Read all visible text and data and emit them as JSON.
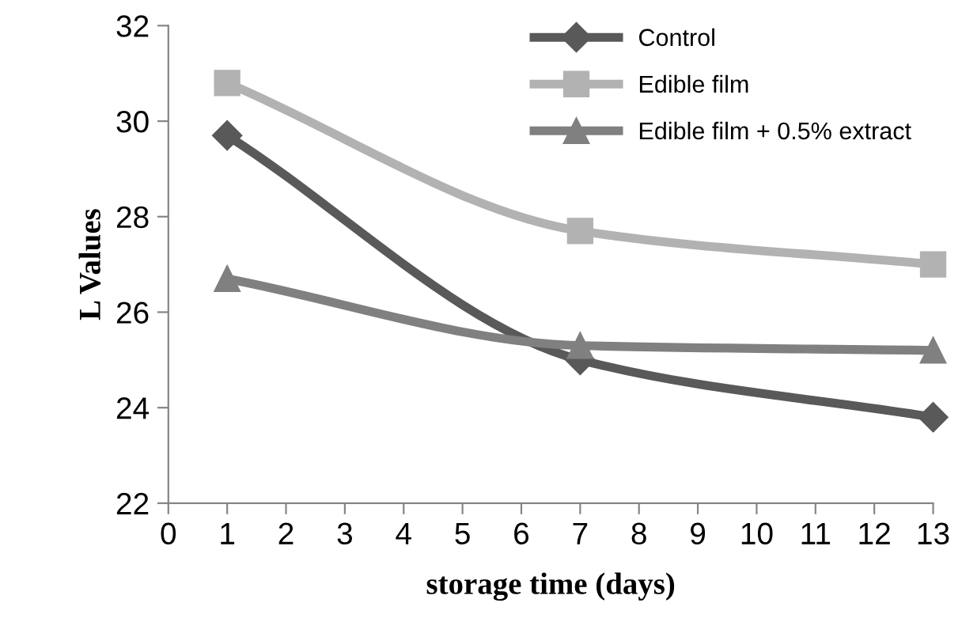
{
  "chart_data": {
    "type": "line",
    "xlabel": "storage time (days)",
    "ylabel": "L Values",
    "x": [
      1,
      7,
      13
    ],
    "series": [
      {
        "name": "Control",
        "color": "#595959",
        "marker": "diamond",
        "values": [
          29.7,
          25.0,
          23.8
        ]
      },
      {
        "name": "Edible film",
        "color": "#b2b2b2",
        "marker": "square",
        "values": [
          30.8,
          27.7,
          27.0
        ]
      },
      {
        "name": "Edible film + 0.5% extract",
        "color": "#808080",
        "marker": "triangle",
        "values": [
          26.7,
          25.3,
          25.2
        ]
      }
    ],
    "xlim": [
      0,
      13
    ],
    "xticks": [
      0,
      1,
      2,
      3,
      4,
      5,
      6,
      7,
      8,
      9,
      10,
      11,
      12,
      13
    ],
    "ylim": [
      22,
      32
    ],
    "yticks": [
      22,
      24,
      26,
      28,
      30,
      32
    ],
    "grid": false,
    "legend": "top right",
    "line_style": "solid"
  }
}
